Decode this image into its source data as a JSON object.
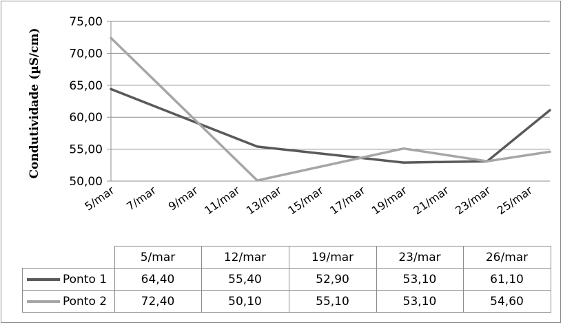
{
  "chart_data": {
    "type": "line",
    "title": "",
    "xlabel": "",
    "ylabel": "Condutividade (µS/cm)",
    "ylim": [
      50,
      75
    ],
    "y_ticks": [
      "50,00",
      "55,00",
      "60,00",
      "65,00",
      "70,00",
      "75,00"
    ],
    "x_tick_labels": [
      "5/mar",
      "7/mar",
      "9/mar",
      "11/mar",
      "13/mar",
      "15/mar",
      "17/mar",
      "19/mar",
      "21/mar",
      "23/mar",
      "25/mar"
    ],
    "x_range": [
      5,
      26
    ],
    "x": [
      5,
      12,
      19,
      23,
      26
    ],
    "series": [
      {
        "name": "Ponto 1",
        "color": "#595959",
        "values": [
          64.4,
          55.4,
          52.9,
          53.1,
          61.1
        ]
      },
      {
        "name": "Ponto 2",
        "color": "#a6a6a6",
        "values": [
          72.4,
          50.1,
          55.1,
          53.1,
          54.6
        ]
      }
    ],
    "grid": true,
    "legend": "data table",
    "data_table": {
      "columns": [
        "5/mar",
        "12/mar",
        "19/mar",
        "23/mar",
        "26/mar"
      ],
      "rows": [
        {
          "name": "Ponto 1",
          "cells": [
            "64,40",
            "55,40",
            "52,90",
            "53,10",
            "61,10"
          ]
        },
        {
          "name": "Ponto 2",
          "cells": [
            "72,40",
            "50,10",
            "55,10",
            "53,10",
            "54,60"
          ]
        }
      ]
    }
  }
}
